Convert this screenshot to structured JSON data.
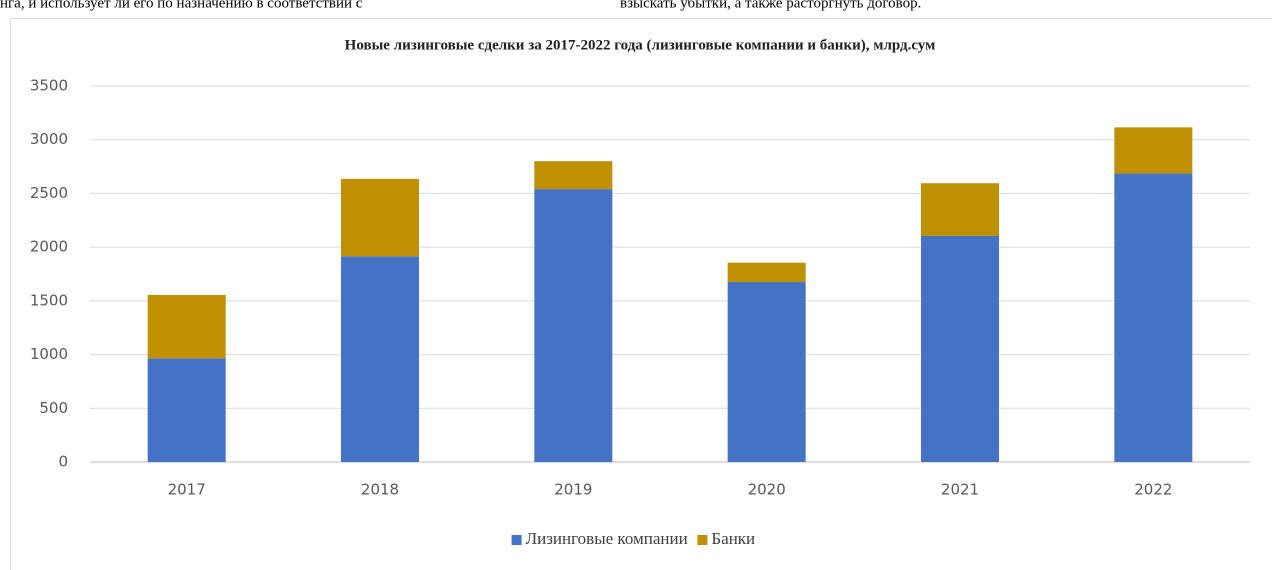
{
  "document_text": [
    "нга, и использует ли его по назначению в соответствии с",
    "взыскать убытки, а также расторгнуть договор."
  ],
  "chart_data": {
    "type": "stacked_bar",
    "title": "Новые лизинговые сделки за 2017-2022 года (лизинговые компании и банки), млрд.сум",
    "categories": [
      "2017",
      "2018",
      "2019",
      "2020",
      "2021",
      "2022"
    ],
    "series": [
      {
        "name": "Лизинговые компании",
        "color": "#4472c4",
        "values": [
          965,
          1915,
          2540,
          1675,
          2105,
          2685
        ]
      },
      {
        "name": "Банки",
        "color": "#bf9000",
        "values": [
          590,
          720,
          260,
          180,
          490,
          430
        ]
      }
    ],
    "ylim": [
      0,
      3500
    ],
    "yticks": [
      0,
      500,
      1000,
      1500,
      2000,
      2500,
      3000,
      3500
    ],
    "grid": true,
    "legend": "bottom"
  }
}
